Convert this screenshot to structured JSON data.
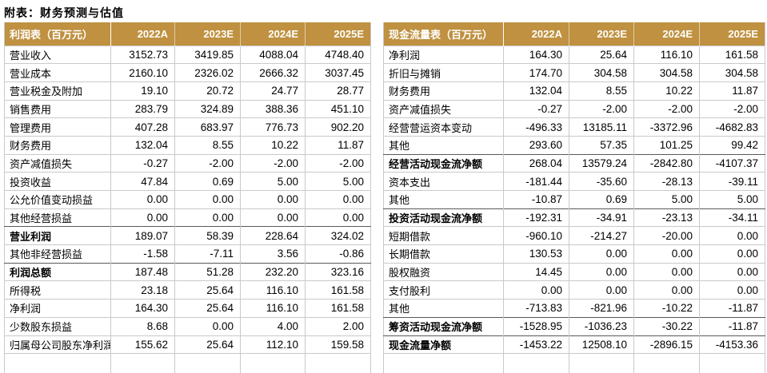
{
  "title": "附表：财务预测与估值",
  "colors": {
    "header_bg": "#BF9140",
    "header_text": "#FFFFFF",
    "row_border": "#C9C9C9",
    "total_row_border": "#595959"
  },
  "income_table": {
    "title": "利润表（百万元）",
    "columns": [
      "2022A",
      "2023E",
      "2024E",
      "2025E"
    ],
    "rows": [
      {
        "label": "营业收入",
        "values": [
          "3152.73",
          "3419.85",
          "4088.04",
          "4748.40"
        ],
        "bold": false
      },
      {
        "label": "营业成本",
        "values": [
          "2160.10",
          "2326.02",
          "2666.32",
          "3037.45"
        ],
        "bold": false
      },
      {
        "label": "营业税金及附加",
        "values": [
          "19.10",
          "20.72",
          "24.77",
          "28.77"
        ],
        "bold": false
      },
      {
        "label": "销售费用",
        "values": [
          "283.79",
          "324.89",
          "388.36",
          "451.10"
        ],
        "bold": false
      },
      {
        "label": "管理费用",
        "values": [
          "407.28",
          "683.97",
          "776.73",
          "902.20"
        ],
        "bold": false
      },
      {
        "label": "财务费用",
        "values": [
          "132.04",
          "8.55",
          "10.22",
          "11.87"
        ],
        "bold": false
      },
      {
        "label": "资产减值损失",
        "values": [
          "-0.27",
          "-2.00",
          "-2.00",
          "-2.00"
        ],
        "bold": false
      },
      {
        "label": "投资收益",
        "values": [
          "47.84",
          "0.69",
          "5.00",
          "5.00"
        ],
        "bold": false
      },
      {
        "label": "公允价值变动损益",
        "values": [
          "0.00",
          "0.00",
          "0.00",
          "0.00"
        ],
        "bold": false
      },
      {
        "label": "其他经营损益",
        "values": [
          "0.00",
          "0.00",
          "0.00",
          "0.00"
        ],
        "bold": false
      },
      {
        "label": "营业利润",
        "values": [
          "189.07",
          "58.39",
          "228.64",
          "324.02"
        ],
        "bold": true
      },
      {
        "label": "其他非经营损益",
        "values": [
          "-1.58",
          "-7.11",
          "3.56",
          "-0.86"
        ],
        "bold": false
      },
      {
        "label": "利润总额",
        "values": [
          "187.48",
          "51.28",
          "232.20",
          "323.16"
        ],
        "bold": true
      },
      {
        "label": "所得税",
        "values": [
          "23.18",
          "25.64",
          "116.10",
          "161.58"
        ],
        "bold": false
      },
      {
        "label": "净利润",
        "values": [
          "164.30",
          "25.64",
          "116.10",
          "161.58"
        ],
        "bold": false
      },
      {
        "label": "少数股东损益",
        "values": [
          "8.68",
          "0.00",
          "4.00",
          "2.00"
        ],
        "bold": false
      },
      {
        "label": "归属母公司股东净利润",
        "values": [
          "155.62",
          "25.64",
          "112.10",
          "159.58"
        ],
        "bold": false
      }
    ]
  },
  "cashflow_table": {
    "title": "现金流量表（百万元）",
    "columns": [
      "2022A",
      "2023E",
      "2024E",
      "2025E"
    ],
    "rows": [
      {
        "label": "净利润",
        "values": [
          "164.30",
          "25.64",
          "116.10",
          "161.58"
        ],
        "bold": false
      },
      {
        "label": "折旧与摊销",
        "values": [
          "174.70",
          "304.58",
          "304.58",
          "304.58"
        ],
        "bold": false
      },
      {
        "label": "财务费用",
        "values": [
          "132.04",
          "8.55",
          "10.22",
          "11.87"
        ],
        "bold": false
      },
      {
        "label": "资产减值损失",
        "values": [
          "-0.27",
          "-2.00",
          "-2.00",
          "-2.00"
        ],
        "bold": false
      },
      {
        "label": "经营营运资本变动",
        "values": [
          "-496.33",
          "13185.11",
          "-3372.96",
          "-4682.83"
        ],
        "bold": false
      },
      {
        "label": "其他",
        "values": [
          "293.60",
          "57.35",
          "101.25",
          "99.42"
        ],
        "bold": false
      },
      {
        "label": "经营活动现金流净额",
        "values": [
          "268.04",
          "13579.24",
          "-2842.80",
          "-4107.37"
        ],
        "bold": true
      },
      {
        "label": "资本支出",
        "values": [
          "-181.44",
          "-35.60",
          "-28.13",
          "-39.11"
        ],
        "bold": false
      },
      {
        "label": "其他",
        "values": [
          "-10.87",
          "0.69",
          "5.00",
          "5.00"
        ],
        "bold": false
      },
      {
        "label": "投资活动现金流净额",
        "values": [
          "-192.31",
          "-34.91",
          "-23.13",
          "-34.11"
        ],
        "bold": true
      },
      {
        "label": "短期借款",
        "values": [
          "-960.10",
          "-214.27",
          "-20.00",
          "0.00"
        ],
        "bold": false
      },
      {
        "label": "长期借款",
        "values": [
          "130.53",
          "0.00",
          "0.00",
          "0.00"
        ],
        "bold": false
      },
      {
        "label": "股权融资",
        "values": [
          "14.45",
          "0.00",
          "0.00",
          "0.00"
        ],
        "bold": false
      },
      {
        "label": "支付股利",
        "values": [
          "0.00",
          "0.00",
          "0.00",
          "0.00"
        ],
        "bold": false
      },
      {
        "label": "其他",
        "values": [
          "-713.83",
          "-821.96",
          "-10.22",
          "-11.87"
        ],
        "bold": false
      },
      {
        "label": "筹资活动现金流净额",
        "values": [
          "-1528.95",
          "-1036.23",
          "-30.22",
          "-11.87"
        ],
        "bold": true
      },
      {
        "label": "现金流量净额",
        "values": [
          "-1453.22",
          "12508.10",
          "-2896.15",
          "-4153.36"
        ],
        "bold": true
      }
    ]
  }
}
